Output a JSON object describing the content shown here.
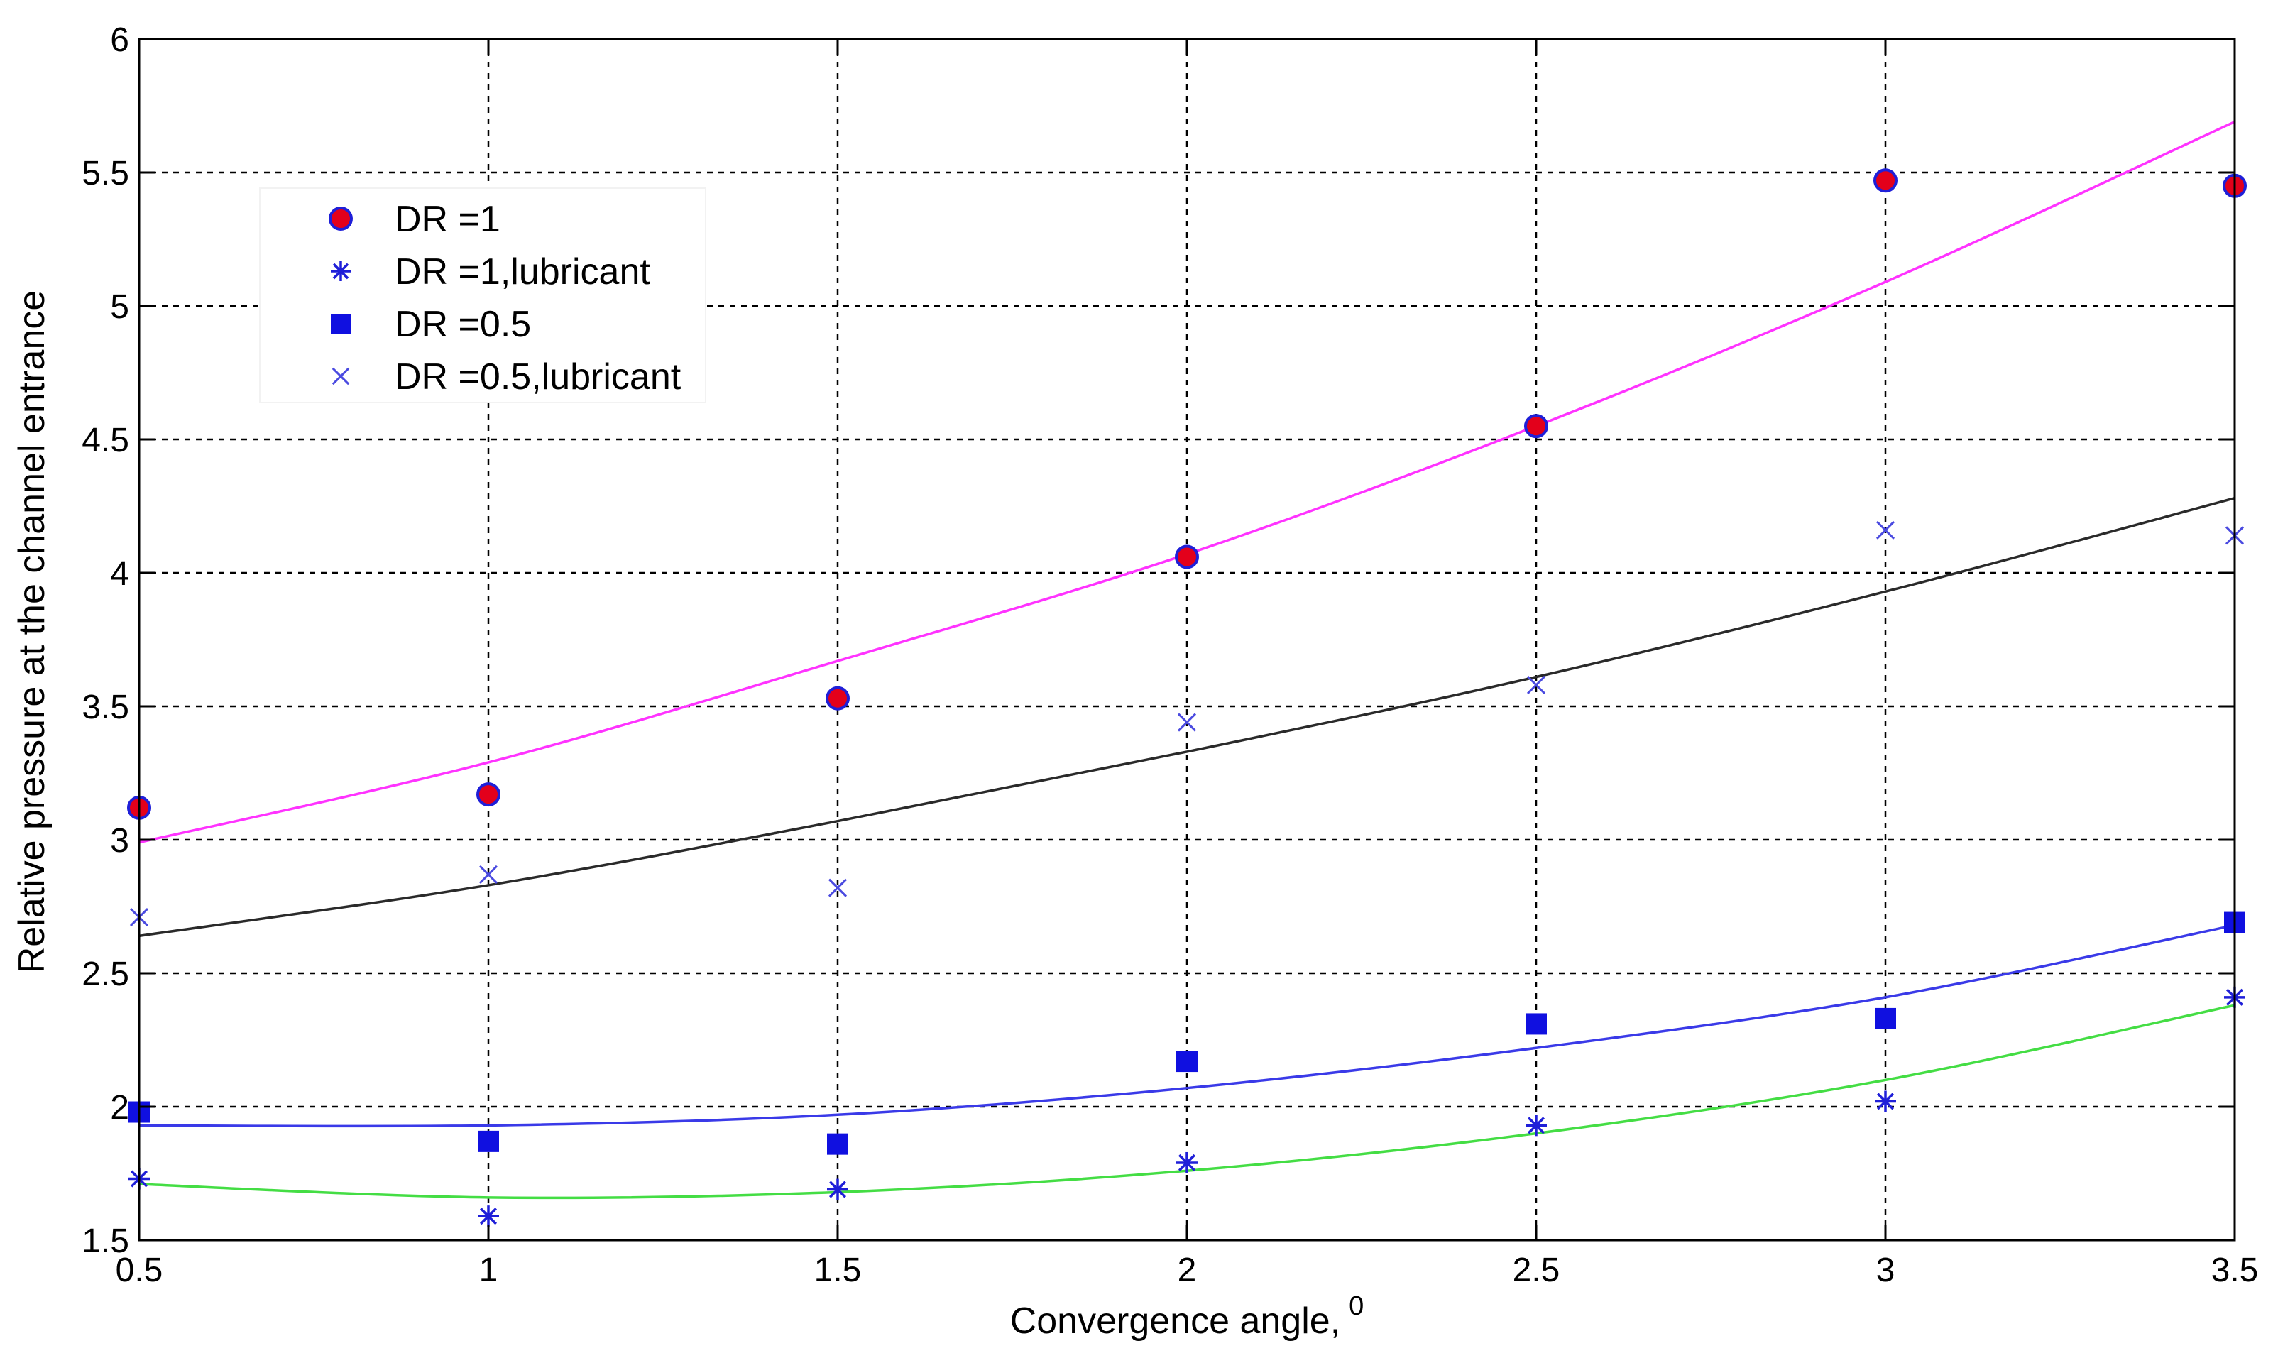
{
  "chart_data": {
    "type": "scatter",
    "title": "",
    "xlabel": "Convergence angle,",
    "xlabel_superscript": "0",
    "ylabel": "Relative pressure at the channel entrance",
    "xlim": [
      0.5,
      3.5
    ],
    "ylim": [
      1.5,
      6
    ],
    "xticks": [
      "0.5",
      "1",
      "1.5",
      "2",
      "2.5",
      "3",
      "3.5"
    ],
    "yticks": [
      "1.5",
      "2",
      "2.5",
      "3",
      "3.5",
      "4",
      "4.5",
      "5",
      "5.5",
      "6"
    ],
    "grid": true,
    "legend_position": "top-left",
    "x": [
      0.5,
      1,
      1.5,
      2,
      2.5,
      3,
      3.5
    ],
    "series": [
      {
        "name": "DR =1",
        "marker": "circle",
        "color": "#e3001b",
        "edge": "#1f1fd8",
        "values": [
          3.12,
          3.17,
          3.53,
          4.06,
          4.55,
          5.47,
          5.45
        ]
      },
      {
        "name": "DR =1,lubricant",
        "marker": "asterisk",
        "color": "#1f1fd8",
        "values": [
          1.73,
          1.59,
          1.69,
          1.79,
          1.93,
          2.02,
          2.41
        ]
      },
      {
        "name": "DR =0.5",
        "marker": "square",
        "color": "#1010e0",
        "values": [
          1.98,
          1.87,
          1.86,
          2.17,
          2.31,
          2.33,
          2.69
        ]
      },
      {
        "name": "DR =0.5,lubricant",
        "marker": "cross",
        "color": "#4a4ae0",
        "values": [
          2.71,
          2.87,
          2.82,
          3.44,
          3.58,
          4.16,
          4.14
        ]
      }
    ],
    "fit_curves": [
      {
        "color": "#ff33ff",
        "values": [
          2.99,
          3.29,
          3.67,
          4.07,
          4.55,
          5.09,
          5.69
        ]
      },
      {
        "color": "#2a2a2a",
        "values": [
          2.64,
          2.83,
          3.07,
          3.33,
          3.61,
          3.93,
          4.28
        ]
      },
      {
        "color": "#3a3ae8",
        "values": [
          1.93,
          1.93,
          1.97,
          2.07,
          2.22,
          2.41,
          2.68
        ]
      },
      {
        "color": "#44dd44",
        "values": [
          1.71,
          1.66,
          1.68,
          1.76,
          1.9,
          2.1,
          2.38
        ]
      }
    ]
  }
}
